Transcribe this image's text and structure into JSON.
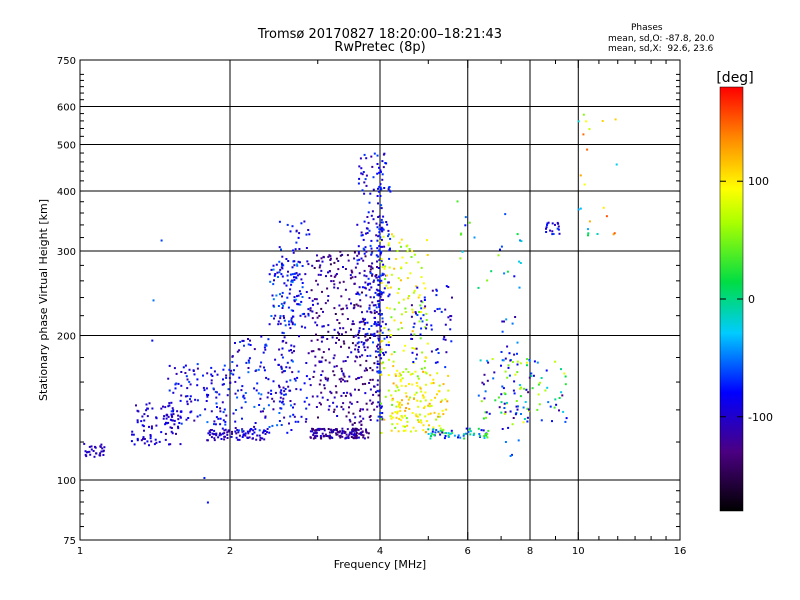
{
  "chart_data": {
    "type": "scatter",
    "title": "Tromsø 20170827 18:20:00–18:21:43",
    "subtitle": "RwPretec (8p)",
    "xlabel": "Frequency [MHz]",
    "ylabel": "Stationary phase Virtual Height [km]",
    "x_scale": "log",
    "y_scale": "log",
    "xlim": [
      1,
      16
    ],
    "ylim": [
      75,
      750
    ],
    "x_ticks": [
      1,
      2,
      4,
      6,
      8,
      10,
      16
    ],
    "y_ticks": [
      75,
      100,
      200,
      300,
      400,
      500,
      600,
      750
    ],
    "grid": true,
    "colorbar": {
      "label": "[deg]",
      "range": [
        -180,
        180
      ],
      "ticks": [
        100,
        0,
        -100
      ],
      "colormap": "rainbow"
    },
    "phases": {
      "title": "Phases",
      "line1": "mean, sd,O: -87.8, 20.0",
      "line2": "mean, sd,X:  92.6, 23.6"
    },
    "series": [
      {
        "clusters": [
          {
            "f": [
              1.0,
              1.12
            ],
            "h": [
              111,
              120
            ],
            "phase": [
              -110,
              -95
            ],
            "n": 30
          },
          {
            "f": [
              1.27,
              1.6
            ],
            "h": [
              118,
              145
            ],
            "phase": [
              -115,
              -80
            ],
            "n": 90
          },
          {
            "f": [
              1.5,
              2.0
            ],
            "h": [
              130,
              175
            ],
            "phase": [
              -120,
              -60
            ],
            "n": 110
          },
          {
            "f": [
              1.8,
              2.4
            ],
            "h": [
              121,
              128
            ],
            "phase": [
              -120,
              -80
            ],
            "n": 80
          },
          {
            "f": [
              2.0,
              2.7
            ],
            "h": [
              125,
              200
            ],
            "phase": [
              -120,
              -50
            ],
            "n": 140
          },
          {
            "f": [
              2.4,
              2.8
            ],
            "h": [
              210,
              290
            ],
            "phase": [
              -110,
              -40
            ],
            "n": 90
          },
          {
            "f": [
              2.5,
              2.9
            ],
            "h": [
              130,
              350
            ],
            "phase": [
              -115,
              -60
            ],
            "n": 110
          },
          {
            "f": [
              2.9,
              3.8
            ],
            "h": [
              122,
              128
            ],
            "phase": [
              -150,
              -90
            ],
            "n": 140
          },
          {
            "f": [
              2.9,
              4.0
            ],
            "h": [
              130,
              300
            ],
            "phase": [
              -150,
              -90
            ],
            "n": 360
          },
          {
            "f": [
              3.6,
              4.2
            ],
            "h": [
              180,
              480
            ],
            "phase": [
              -115,
              -60
            ],
            "n": 200
          },
          {
            "f": [
              3.95,
              4.05
            ],
            "h": [
              130,
              470
            ],
            "phase": [
              -100,
              -60
            ],
            "n": 80
          },
          {
            "f": [
              4.0,
              5.0
            ],
            "h": [
              125,
              330
            ],
            "phase": [
              40,
              120
            ],
            "n": 170
          },
          {
            "f": [
              4.2,
              5.5
            ],
            "h": [
              125,
              170
            ],
            "phase": [
              60,
              130
            ],
            "n": 110
          },
          {
            "f": [
              4.6,
              5.6
            ],
            "h": [
              170,
              260
            ],
            "phase": [
              -120,
              -60
            ],
            "n": 60
          },
          {
            "f": [
              5.0,
              6.6
            ],
            "h": [
              122,
              128
            ],
            "phase": [
              -100,
              50
            ],
            "n": 60
          },
          {
            "f": [
              6.3,
              9.5
            ],
            "h": [
              130,
              180
            ],
            "phase": [
              -130,
              90
            ],
            "n": 110
          },
          {
            "f": [
              7.0,
              7.6
            ],
            "h": [
              110,
              220
            ],
            "phase": [
              -120,
              -40
            ],
            "n": 30
          },
          {
            "f": [
              8.6,
              9.2
            ],
            "h": [
              325,
              345
            ],
            "phase": [
              -110,
              -60
            ],
            "n": 18
          },
          {
            "f": [
              10.0,
              12.0
            ],
            "h": [
              320,
              580
            ],
            "phase": [
              -60,
              160
            ],
            "n": 22
          },
          {
            "f": [
              5.4,
              7.8
            ],
            "h": [
              250,
              420
            ],
            "phase": [
              -80,
              80
            ],
            "n": 25
          },
          {
            "f": [
              1.2,
              1.9
            ],
            "h": [
              88,
              330
            ],
            "phase": [
              -100,
              100
            ],
            "n": 6
          }
        ]
      }
    ]
  }
}
